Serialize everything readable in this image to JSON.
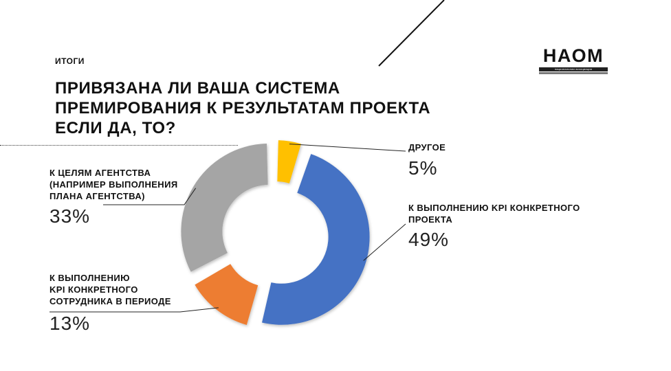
{
  "header": {
    "section_label": "ИТОГИ",
    "title_lines": [
      "ПРИВЯЗАНА ЛИ ВАША СИСТЕМА",
      "ПРЕМИРОВАНИЯ К РЕЗУЛЬТАТАМ ПРОЕКТА",
      "ЕСЛИ ДА, ТО?"
    ]
  },
  "logo": {
    "word": "НАОМ",
    "sub": "национальная ассоциация"
  },
  "chart_data": {
    "type": "pie",
    "donut": true,
    "title": "ПРИВЯЗАНА ЛИ ВАША СИСТЕМА ПРЕМИРОВАНИЯ К РЕЗУЛЬТАТАМ ПРОЕКТА ЕСЛИ ДА, ТО?",
    "slices": [
      {
        "key": "other",
        "label": "ДРУГОЕ",
        "value": 5,
        "value_label": "5%",
        "color": "#FFC000"
      },
      {
        "key": "project_kpi",
        "label": "К ВЫПОЛНЕНИЮ KPI КОНКРЕТНОГО\nПРОЕКТА",
        "value": 49,
        "value_label": "49%",
        "color": "#4472C4"
      },
      {
        "key": "employee_kpi",
        "label": "К ВЫПОЛНЕНИЮ\nKPI КОНКРЕТНОГО\nСОТРУДНИКА В ПЕРИОДЕ",
        "value": 13,
        "value_label": "13%",
        "color": "#ED7D31"
      },
      {
        "key": "agency_goals",
        "label": "К ЦЕЛЯМ АГЕНТСТВА\n(НАПРИМЕР ВЫПОЛНЕНИЯ\nПЛАНА АГЕНТСТВА)",
        "value": 33,
        "value_label": "33%",
        "color": "#A5A5A5"
      }
    ],
    "legend": "none"
  }
}
